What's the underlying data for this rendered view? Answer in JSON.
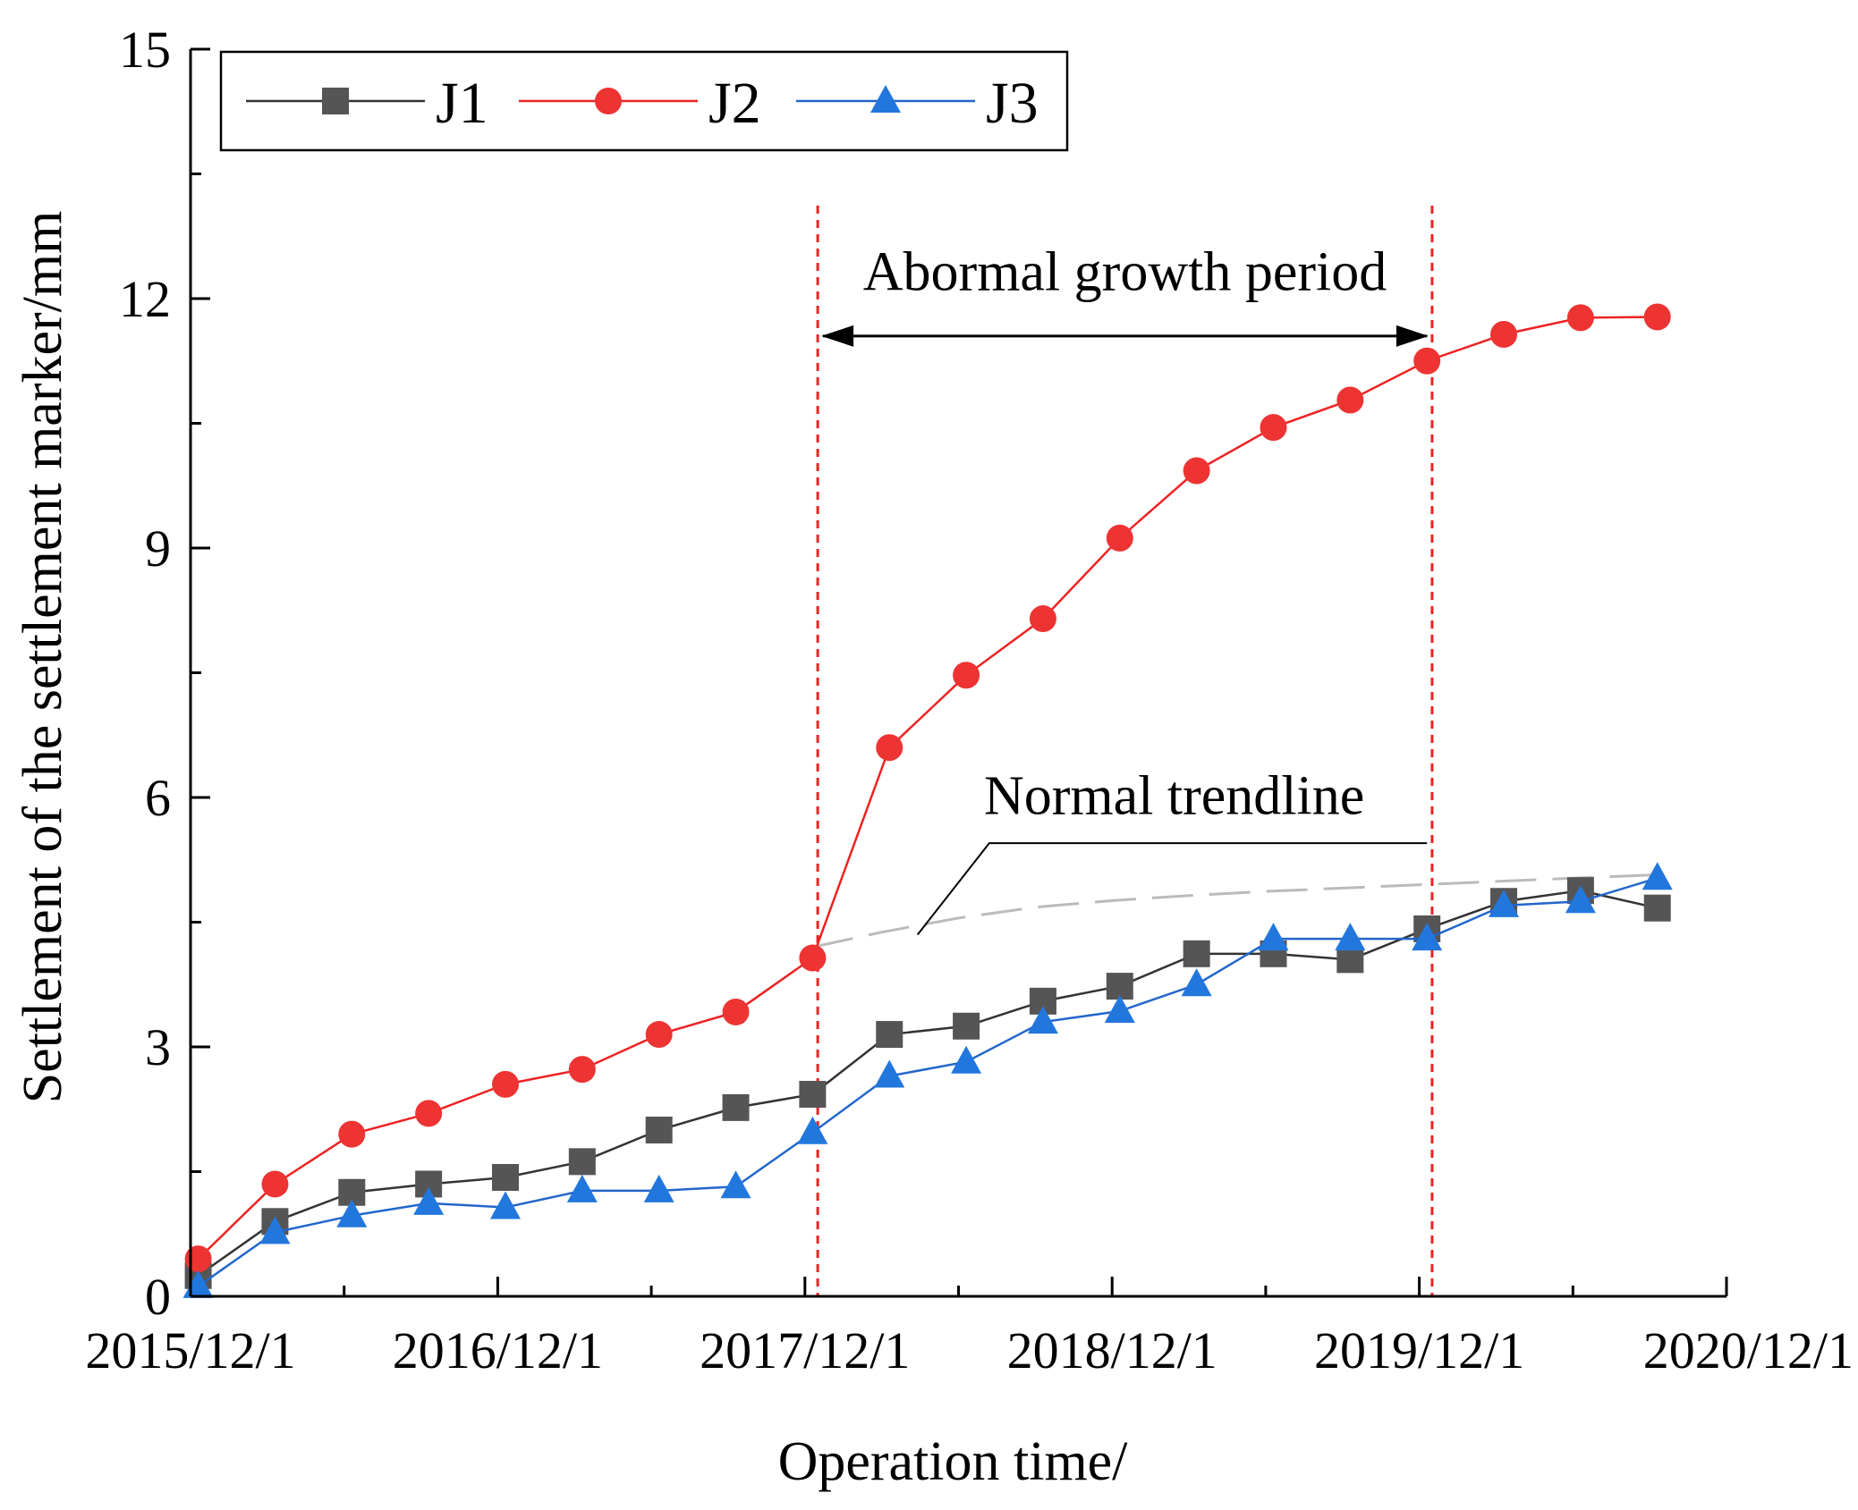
{
  "chart_data": {
    "type": "line",
    "title": "",
    "xlabel": "Operation time/",
    "ylabel": "Settlement of the settlement marker/mm",
    "ylim": [
      0,
      15
    ],
    "yticks": [
      0,
      3,
      6,
      9,
      12,
      15
    ],
    "xlim_months": [
      0,
      60
    ],
    "xticks": [
      {
        "month": 0,
        "label": "2015/12/1"
      },
      {
        "month": 12,
        "label": "2016/12/1"
      },
      {
        "month": 24,
        "label": "2017/12/1"
      },
      {
        "month": 36,
        "label": "2018/12/1"
      },
      {
        "month": 48,
        "label": "2019/12/1"
      },
      {
        "month": 60,
        "label": "2020/12/1"
      }
    ],
    "x_months": [
      0.3,
      3.3,
      6.3,
      9.3,
      12.3,
      15.3,
      18.3,
      21.3,
      24.3,
      27.3,
      30.3,
      33.3,
      36.3,
      39.3,
      42.3,
      45.3,
      48.3,
      51.3,
      54.3,
      57.3
    ],
    "series": [
      {
        "name": "J1",
        "color": "#555555",
        "marker": "square",
        "line": "#333333",
        "values": [
          0.25,
          0.9,
          1.25,
          1.35,
          1.43,
          1.62,
          2.0,
          2.27,
          2.43,
          3.15,
          3.25,
          3.55,
          3.73,
          4.12,
          4.12,
          4.05,
          4.42,
          4.75,
          4.88,
          4.67
        ]
      },
      {
        "name": "J2",
        "color": "#ee3333",
        "marker": "circle",
        "line": "#ee2222",
        "values": [
          0.45,
          1.35,
          1.95,
          2.2,
          2.55,
          2.73,
          3.15,
          3.42,
          4.07,
          6.6,
          7.47,
          8.15,
          9.12,
          9.93,
          10.45,
          10.78,
          11.25,
          11.57,
          11.77,
          11.78
        ]
      },
      {
        "name": "J3",
        "color": "#2277dd",
        "marker": "triangle",
        "line": "#2266cc",
        "values": [
          0.12,
          0.77,
          0.97,
          1.12,
          1.07,
          1.27,
          1.27,
          1.32,
          1.97,
          2.65,
          2.82,
          3.3,
          3.43,
          3.75,
          4.3,
          4.3,
          4.3,
          4.7,
          4.75,
          5.03
        ]
      }
    ],
    "trendline": {
      "label": "Normal trendline",
      "color": "#bbbbbb",
      "x_months": [
        24.3,
        27,
        30,
        33,
        36,
        39,
        42,
        45,
        48,
        51,
        54,
        57.3
      ],
      "values": [
        4.2,
        4.38,
        4.55,
        4.68,
        4.76,
        4.82,
        4.87,
        4.91,
        4.95,
        4.99,
        5.03,
        5.07
      ]
    },
    "abnormal_period": {
      "label": "Abormal growth period",
      "start_month": 24.5,
      "end_month": 48.5,
      "line_color": "#ee2222"
    },
    "legend": {
      "position": "top-left",
      "entries": [
        "J1",
        "J2",
        "J3"
      ]
    },
    "grid": false
  }
}
